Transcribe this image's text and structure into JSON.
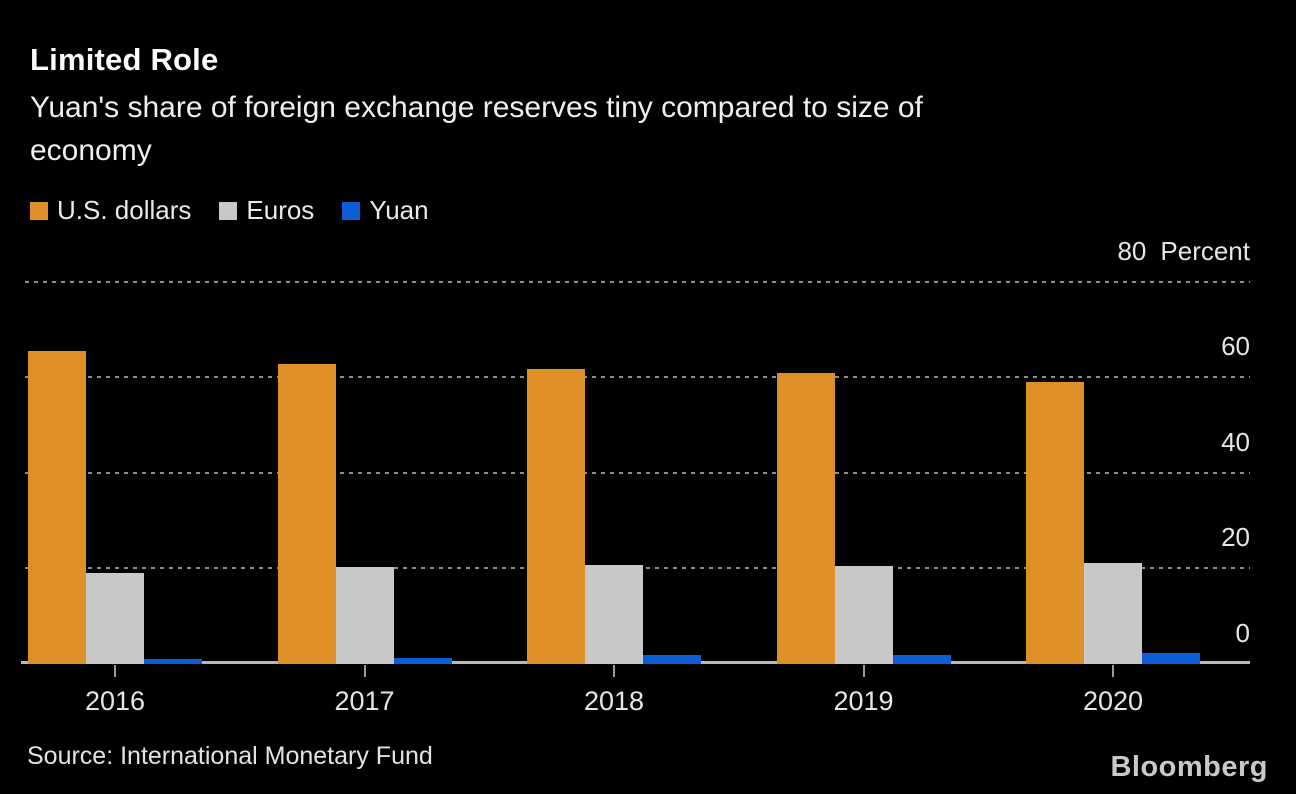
{
  "header": {
    "title": "Limited Role",
    "subtitle": "Yuan's share of foreign exchange reserves tiny compared to size of\neconomy"
  },
  "chart_data": {
    "type": "bar",
    "title": "Limited Role",
    "subtitle": "Yuan's share of foreign exchange reserves tiny compared to size of economy",
    "categories": [
      "2016",
      "2017",
      "2018",
      "2019",
      "2020"
    ],
    "series": [
      {
        "name": "U.S. dollars",
        "color": "#de8f28",
        "values": [
          65.4,
          62.7,
          61.7,
          60.9,
          59.0
        ]
      },
      {
        "name": "Euros",
        "color": "#c8c8c8",
        "values": [
          19.1,
          20.2,
          20.7,
          20.6,
          21.2
        ]
      },
      {
        "name": "Yuan",
        "color": "#0c5dd6",
        "values": [
          1.1,
          1.2,
          1.9,
          1.9,
          2.3
        ]
      }
    ],
    "yticks": [
      0,
      20,
      40,
      60,
      80
    ],
    "y_unit": "Percent",
    "ylim": [
      0,
      80
    ],
    "xlabel": "",
    "ylabel": "Percent",
    "grid": "dotted horizontal gridlines, solid zero baseline",
    "legend_position": "top-left"
  },
  "footer": {
    "source": "Source: International Monetary Fund",
    "brand": "Bloomberg"
  }
}
